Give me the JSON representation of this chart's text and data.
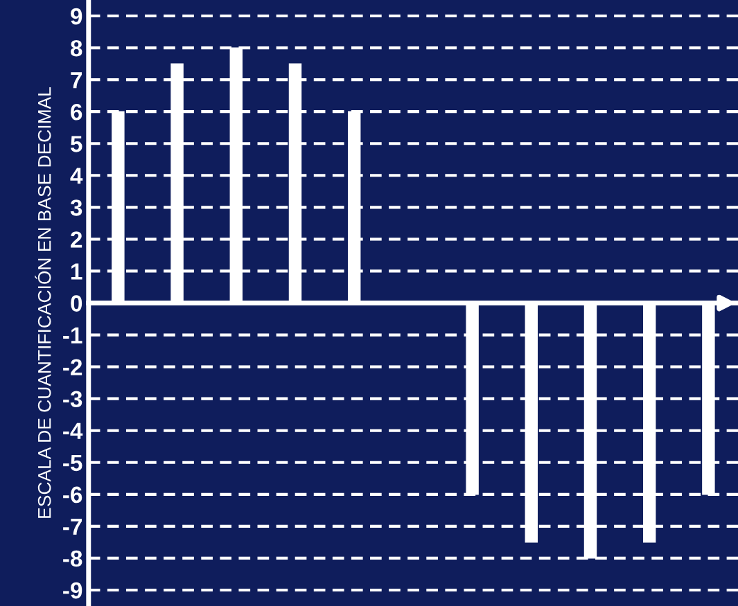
{
  "chart_data": {
    "type": "bar",
    "ylabel": "ESCALA DE CUANTIFICACIÓN EN BASE DECIMAL",
    "categories": [
      null,
      null,
      null,
      null,
      null,
      null,
      null,
      null,
      null,
      null,
      null
    ],
    "values": [
      6,
      7.5,
      8,
      7.5,
      6,
      null,
      -6,
      -7.5,
      -8,
      -7.5,
      -6
    ],
    "color": "#ffffff",
    "ylim": [
      -9.5,
      9.5
    ],
    "yticks": [
      -9,
      -8,
      -7,
      -6,
      -5,
      -4,
      -3,
      -2,
      -1,
      0,
      1,
      2,
      3,
      4,
      5,
      6,
      7,
      8,
      9
    ],
    "grid": "y",
    "tick_labels": "y"
  }
}
